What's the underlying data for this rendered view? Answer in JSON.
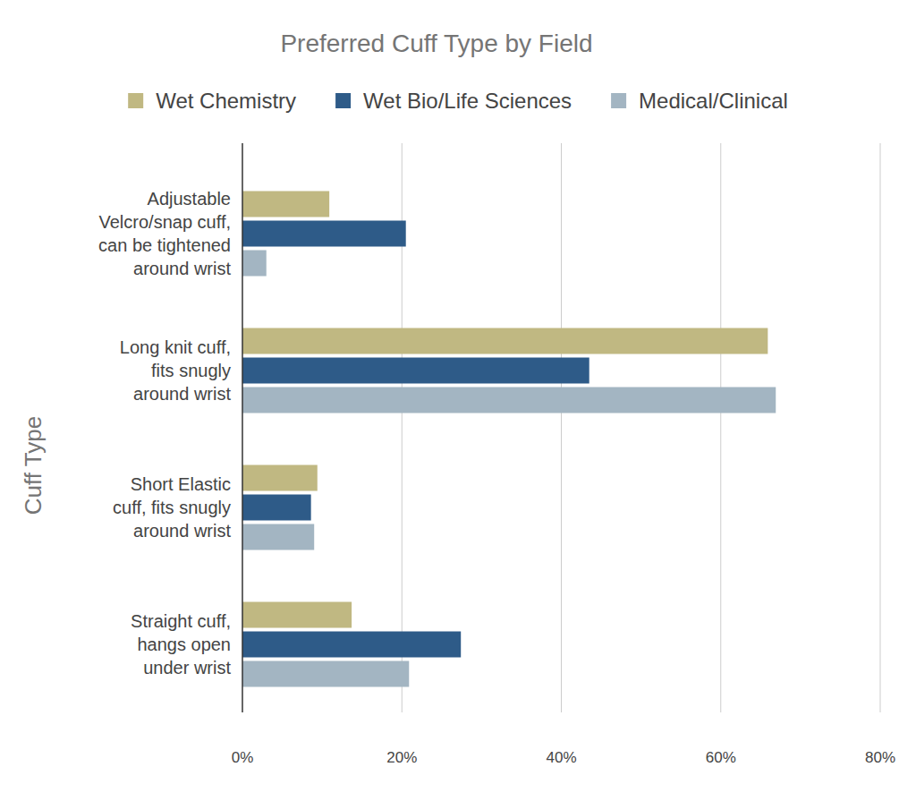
{
  "chart_data": {
    "type": "bar",
    "orientation": "horizontal",
    "title": "Preferred Cuff Type by Field",
    "y_label": "Cuff Type",
    "categories": [
      "Adjustable Velcro/snap cuff, can be tightened around wrist",
      "Long knit cuff, fits snugly around wrist",
      "Short Elastic cuff, fits snugly around wrist",
      "Straight cuff, hangs open under wrist"
    ],
    "series": [
      {
        "name": "Wet Chemistry",
        "color": "#c0b882",
        "values": [
          10.9,
          65.9,
          9.4,
          13.7
        ]
      },
      {
        "name": "Wet Bio/Life Sciences",
        "color": "#2e5b88",
        "values": [
          20.5,
          43.5,
          8.6,
          27.4
        ]
      },
      {
        "name": "Medical/Clinical",
        "color": "#a3b5c2",
        "values": [
          3.0,
          66.9,
          9.0,
          20.9
        ]
      }
    ],
    "xlim": [
      0,
      80
    ],
    "xticks": [
      {
        "value": 0,
        "label": "0%"
      },
      {
        "value": 20,
        "label": "20%"
      },
      {
        "value": 40,
        "label": "40%"
      },
      {
        "value": 60,
        "label": "60%"
      },
      {
        "value": 80,
        "label": "80%"
      }
    ],
    "grid": true,
    "legend": "top"
  }
}
